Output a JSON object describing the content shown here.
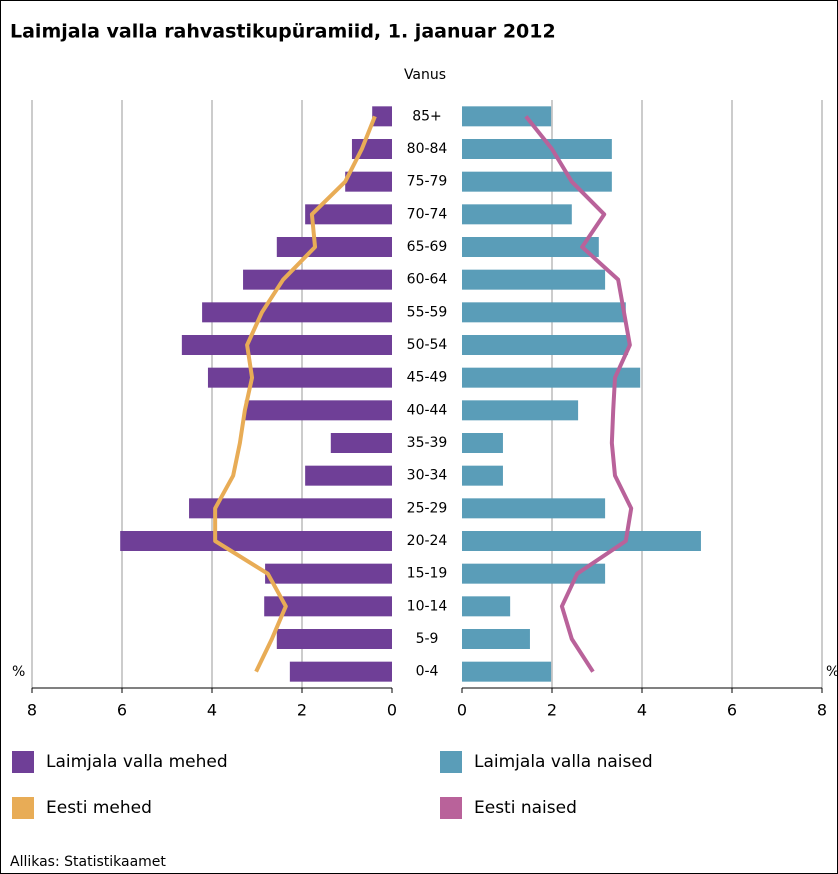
{
  "chart_data": {
    "type": "pyramid",
    "title": "Laimjala valla rahvastikupüramiid, 1. jaanuar 2012",
    "category_label": "Vanus",
    "x_unit": "%",
    "source": "Allikas: Statistikaamet",
    "categories": [
      "85+",
      "80-84",
      "75-79",
      "70-74",
      "65-69",
      "60-64",
      "55-59",
      "50-54",
      "45-49",
      "40-44",
      "35-39",
      "30-34",
      "25-29",
      "20-24",
      "15-19",
      "10-14",
      "5-9",
      "0-4"
    ],
    "xlim": [
      0,
      8
    ],
    "xticks": [
      0,
      2,
      4,
      6,
      8
    ],
    "grid": true,
    "series": [
      {
        "name": "Laimjala valla mehed",
        "side": "left",
        "kind": "bar",
        "color": "#6f3f97",
        "values": [
          0.44,
          0.89,
          1.04,
          1.93,
          2.56,
          3.31,
          4.22,
          4.67,
          4.09,
          3.27,
          1.36,
          1.93,
          4.51,
          6.04,
          2.82,
          2.84,
          2.56,
          2.27
        ]
      },
      {
        "name": "Laimjala valla naised",
        "side": "right",
        "kind": "bar",
        "color": "#5a9db8",
        "values": [
          1.98,
          3.33,
          3.33,
          2.44,
          3.04,
          3.18,
          3.64,
          3.69,
          3.96,
          2.58,
          0.91,
          0.91,
          3.18,
          5.31,
          3.18,
          1.07,
          1.51,
          1.98
        ]
      },
      {
        "name": "Eesti mehed",
        "side": "left",
        "kind": "line",
        "color": "#e8ac56",
        "values": [
          0.38,
          0.67,
          1.04,
          1.78,
          1.71,
          2.42,
          2.89,
          3.22,
          3.11,
          3.27,
          3.38,
          3.53,
          3.93,
          3.93,
          2.76,
          2.36,
          2.67,
          3.02
        ]
      },
      {
        "name": "Eesti naised",
        "side": "right",
        "kind": "line",
        "color": "#b9629a",
        "values": [
          1.42,
          2.0,
          2.44,
          3.16,
          2.67,
          3.47,
          3.6,
          3.73,
          3.4,
          3.36,
          3.33,
          3.4,
          3.76,
          3.64,
          2.56,
          2.22,
          2.44,
          2.91
        ]
      }
    ]
  }
}
